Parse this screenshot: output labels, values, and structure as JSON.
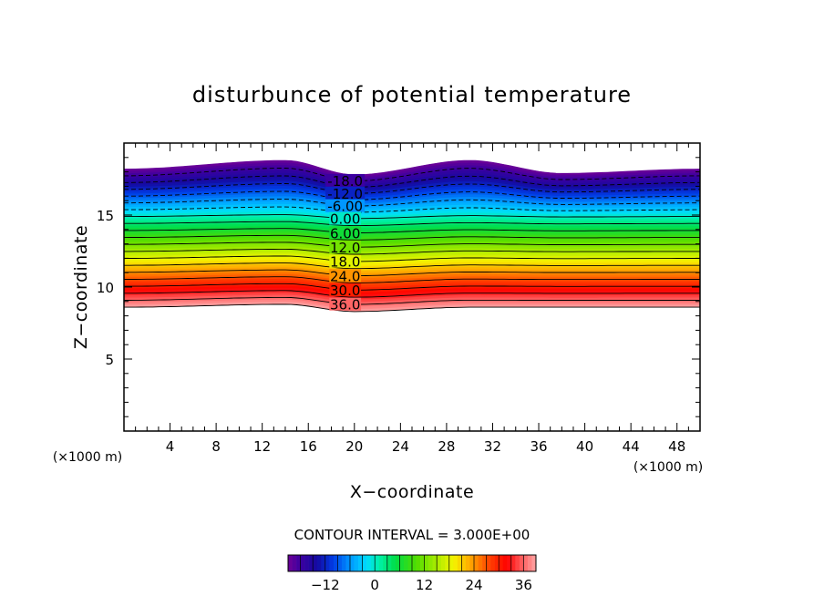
{
  "chart_data": {
    "type": "contour",
    "title": "disturbunce of potential temperature",
    "xlabel": "X−coordinate",
    "ylabel": "Z−coordinate",
    "x_unit_label": "(×1000 m)",
    "y_unit_label": "(×1000 m)",
    "xlim": [
      0,
      50
    ],
    "ylim": [
      0,
      20
    ],
    "x_ticks": [
      4,
      8,
      12,
      16,
      20,
      24,
      28,
      32,
      36,
      40,
      44,
      48
    ],
    "y_ticks": [
      5,
      10,
      15
    ],
    "contour_interval_label": "CONTOUR INTERVAL = 3.000E+00",
    "contour_interval": 3.0,
    "contour_labels": [
      {
        "text": "-18.0",
        "value": -18
      },
      {
        "text": "-12.0",
        "value": -12
      },
      {
        "text": "-6.00",
        "value": -6
      },
      {
        "text": "0.00",
        "value": 0
      },
      {
        "text": "6.00",
        "value": 6
      },
      {
        "text": "12.0",
        "value": 12
      },
      {
        "text": "18.0",
        "value": 18
      },
      {
        "text": "24.0",
        "value": 24
      },
      {
        "text": "30.0",
        "value": 30
      },
      {
        "text": "36.0",
        "value": 36
      }
    ],
    "field_bottom_z": [
      [
        0,
        8.6
      ],
      [
        14,
        8.8
      ],
      [
        20,
        8.3
      ],
      [
        30,
        8.6
      ],
      [
        50,
        8.6
      ]
    ],
    "field_top_z": [
      [
        0,
        18.2
      ],
      [
        14,
        18.8
      ],
      [
        20,
        17.8
      ],
      [
        30,
        18.8
      ],
      [
        38,
        17.9
      ],
      [
        50,
        18.2
      ]
    ],
    "zero_level_z": 14.9,
    "value_range": [
      -21,
      39
    ],
    "colorbar": {
      "min": -21,
      "max": 39,
      "ticks": [
        -12,
        0,
        12,
        24,
        36
      ],
      "tick_labels": [
        "−12",
        "0",
        "12",
        "24",
        "36"
      ]
    }
  }
}
